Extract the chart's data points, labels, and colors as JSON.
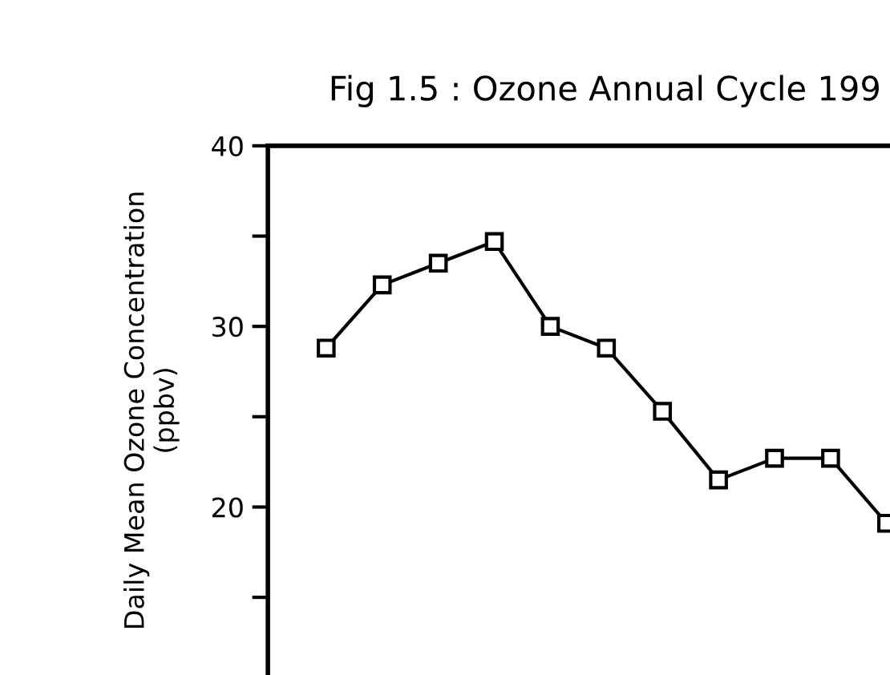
{
  "chart_data": {
    "type": "line",
    "title": "Fig 1.5 : Ozone Annual Cycle 199",
    "ylabel": "Daily Mean Ozone Concentration\n(ppbv)",
    "categories": [
      null,
      null,
      null,
      null,
      null,
      null,
      null,
      null,
      null,
      null,
      null
    ],
    "series": [
      {
        "color": "#000000",
        "values": [
          28.8,
          32.3,
          33.5,
          34.7,
          30.0,
          28.8,
          25.3,
          21.5,
          22.7,
          22.7,
          19.1
        ]
      }
    ],
    "ylim": [
      10.7,
      40
    ],
    "yticks": [
      {
        "value": 15,
        "label": null
      },
      20,
      {
        "value": 25,
        "label": null
      },
      30,
      {
        "value": 35,
        "label": null
      },
      40
    ],
    "tick_labels": "y",
    "marker": "square",
    "line_style": "solid",
    "grid": false,
    "legend": false
  }
}
